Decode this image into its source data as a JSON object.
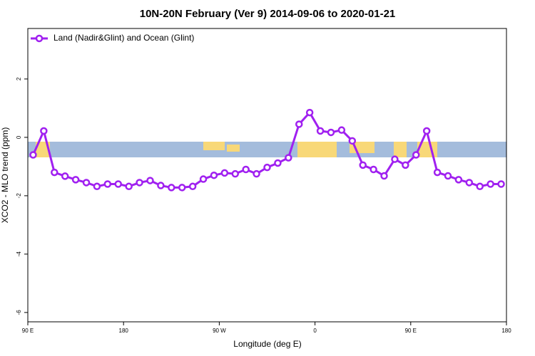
{
  "chart_data": {
    "type": "line",
    "title": "10N-20N February (Ver 9)   2014-09-06 to 2020-01-21",
    "x_label": "Longitude (deg E)",
    "y_label": "XCO2 - MLO trend (ppm)",
    "legend": "upper left",
    "x": [
      95,
      105,
      115,
      125,
      135,
      145,
      155,
      165,
      175,
      185,
      195,
      205,
      215,
      225,
      235,
      245,
      255,
      265,
      275,
      285,
      295,
      305,
      315,
      325,
      335,
      345,
      355,
      365,
      375,
      385,
      395,
      405,
      415,
      425,
      435,
      445,
      455,
      465,
      475,
      485,
      495,
      505,
      515,
      525,
      535
    ],
    "series": [
      {
        "name": "Land (Nadir&Glint) and Ocean (Glint)",
        "color": "#a020f0",
        "values": [
          -0.6,
          0.22,
          -1.2,
          -1.33,
          -1.45,
          -1.55,
          -1.68,
          -1.6,
          -1.6,
          -1.68,
          -1.55,
          -1.48,
          -1.65,
          -1.72,
          -1.72,
          -1.68,
          -1.43,
          -1.3,
          -1.22,
          -1.25,
          -1.1,
          -1.25,
          -1.03,
          -0.88,
          -0.7,
          0.45,
          0.85,
          0.22,
          0.17,
          0.25,
          -0.12,
          -0.95,
          -1.1,
          -1.32,
          -0.75,
          -0.95,
          -0.6,
          0.22,
          -1.2,
          -1.32,
          -1.45,
          -1.55,
          -1.68,
          -1.6,
          -1.6
        ]
      }
    ],
    "xlim": [
      90,
      540
    ],
    "xticks": [
      {
        "value": 90,
        "label": "90 E"
      },
      180,
      {
        "value": 270,
        "label": "90 W"
      },
      {
        "value": 360,
        "label": "0"
      },
      {
        "value": 450,
        "label": "90 E"
      },
      {
        "value": 540,
        "label": "180"
      }
    ],
    "ylim": [
      -6.32,
      3.73
    ],
    "yticks": [
      2,
      0,
      -2,
      -4,
      -6
    ]
  }
}
